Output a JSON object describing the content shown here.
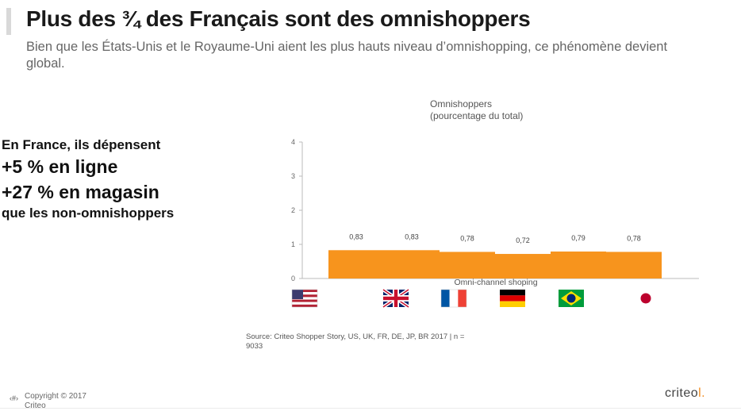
{
  "slide": {
    "title": "Plus des ¾ des Français sont des omnishoppers",
    "subtitle": "Bien que les États-Unis et le Royaume-Uni aient les plus hauts niveau d’omnishopping, ce phénomène devient global."
  },
  "callout": {
    "line1": "En France, ils dépensent",
    "line2": "+5 % en ligne",
    "line3": "+27 % en magasin",
    "line4": "que les non-omnishoppers"
  },
  "chart_title": {
    "line1": "Omnishoppers",
    "line2": "(pourcentage du total)"
  },
  "chart_data": {
    "type": "area",
    "categories": [
      "US",
      "UK",
      "FR",
      "DE",
      "BR",
      "JP"
    ],
    "series": [
      {
        "name": "Omni-channel shoping",
        "values": [
          0.83,
          0.83,
          0.78,
          0.72,
          0.79,
          0.78
        ]
      }
    ],
    "data_labels": [
      "0,83",
      "0,83",
      "0,78",
      "0,72",
      "0,79",
      "0,78"
    ],
    "y_ticks": [
      "0",
      "1",
      "2",
      "3",
      "4"
    ],
    "ylim": [
      0,
      4
    ],
    "grid": false,
    "color": "#f7941d",
    "x_icons": [
      "flag-usa-icon",
      "flag-uk-icon",
      "flag-france-icon",
      "flag-germany-icon",
      "flag-brazil-icon",
      "flag-japan-icon"
    ]
  },
  "source": "Source: Criteo Shopper Story, US, UK, FR, DE, JP, BR 2017 | n = 9033",
  "footer": {
    "page_number": "‹#›",
    "copyright_line1": "Copyright © 2017",
    "copyright_line2": "Criteo",
    "logo_text": "criteo",
    "logo_mark": "l."
  }
}
